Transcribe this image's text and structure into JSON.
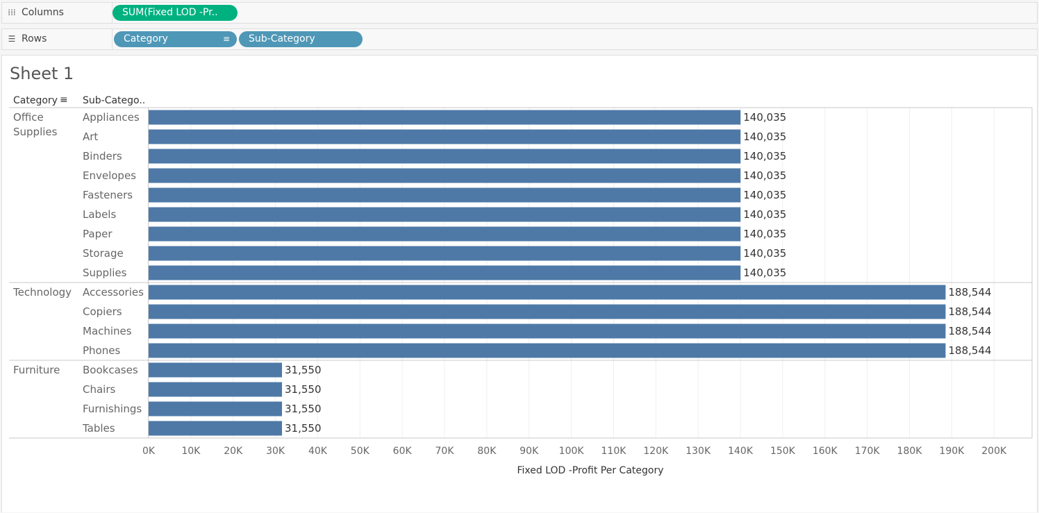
{
  "shelves": {
    "columns": {
      "label": "Columns",
      "icon": "columns-icon",
      "pills": [
        "SUM(Fixed LOD -Pr.."
      ]
    },
    "rows": {
      "label": "Rows",
      "icon": "rows-icon",
      "pills": [
        "Category",
        "Sub-Category"
      ]
    }
  },
  "sheet": {
    "title": "Sheet 1"
  },
  "colors": {
    "bar": "#4e79a7",
    "pill_measure": "#00b180",
    "pill_dimension": "#4f97b6"
  },
  "chart_data": {
    "type": "bar",
    "orientation": "horizontal",
    "row_headers": [
      "Category",
      "Sub-Catego.."
    ],
    "groups": [
      {
        "category": [
          "Office",
          "Supplies"
        ],
        "items": [
          {
            "name": "Appliances",
            "value": 140035,
            "label": "140,035"
          },
          {
            "name": "Art",
            "value": 140035,
            "label": "140,035"
          },
          {
            "name": "Binders",
            "value": 140035,
            "label": "140,035"
          },
          {
            "name": "Envelopes",
            "value": 140035,
            "label": "140,035"
          },
          {
            "name": "Fasteners",
            "value": 140035,
            "label": "140,035"
          },
          {
            "name": "Labels",
            "value": 140035,
            "label": "140,035"
          },
          {
            "name": "Paper",
            "value": 140035,
            "label": "140,035"
          },
          {
            "name": "Storage",
            "value": 140035,
            "label": "140,035"
          },
          {
            "name": "Supplies",
            "value": 140035,
            "label": "140,035"
          }
        ]
      },
      {
        "category": [
          "Technology"
        ],
        "items": [
          {
            "name": "Accessories",
            "value": 188544,
            "label": "188,544"
          },
          {
            "name": "Copiers",
            "value": 188544,
            "label": "188,544"
          },
          {
            "name": "Machines",
            "value": 188544,
            "label": "188,544"
          },
          {
            "name": "Phones",
            "value": 188544,
            "label": "188,544"
          }
        ]
      },
      {
        "category": [
          "Furniture"
        ],
        "items": [
          {
            "name": "Bookcases",
            "value": 31550,
            "label": "31,550"
          },
          {
            "name": "Chairs",
            "value": 31550,
            "label": "31,550"
          },
          {
            "name": "Furnishings",
            "value": 31550,
            "label": "31,550"
          },
          {
            "name": "Tables",
            "value": 31550,
            "label": "31,550"
          }
        ]
      }
    ],
    "xlabel": "Fixed LOD -Profit Per Category",
    "xlim": [
      0,
      209000
    ],
    "ticks": [
      0,
      10000,
      20000,
      30000,
      40000,
      50000,
      60000,
      70000,
      80000,
      90000,
      100000,
      110000,
      120000,
      130000,
      140000,
      150000,
      160000,
      170000,
      180000,
      190000,
      200000
    ],
    "tick_labels": [
      "0K",
      "10K",
      "20K",
      "30K",
      "40K",
      "50K",
      "60K",
      "70K",
      "80K",
      "90K",
      "100K",
      "110K",
      "120K",
      "130K",
      "140K",
      "150K",
      "160K",
      "170K",
      "180K",
      "190K",
      "200K"
    ],
    "grid": true
  }
}
